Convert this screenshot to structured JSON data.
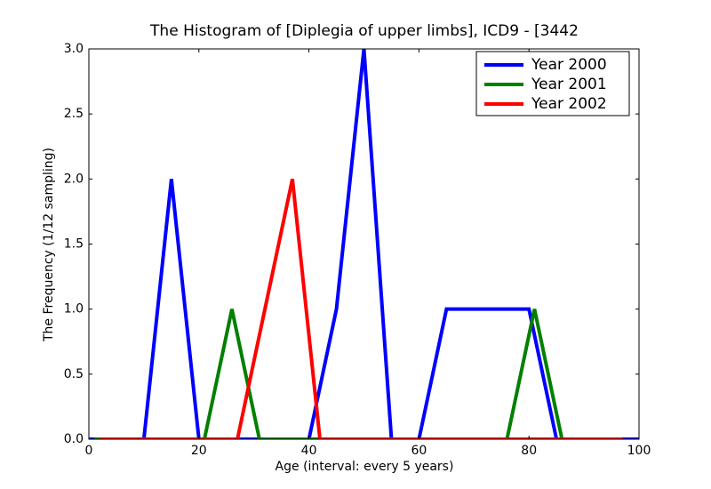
{
  "chart_data": {
    "type": "line",
    "title": "The Histogram of [Diplegia of upper limbs], ICD9 - [3442",
    "x_label": "Age (interval: every 5 years)",
    "y_label": "The Frequency (1/12 sampling)",
    "xlim": [
      0,
      100
    ],
    "xticks": [
      0,
      20,
      40,
      60,
      80,
      100
    ],
    "ylim": [
      0,
      3
    ],
    "yticks": [
      {
        "value": 0,
        "label": "0.0"
      },
      {
        "value": 0.5,
        "label": "0.5"
      },
      {
        "value": 1,
        "label": "1.0"
      },
      {
        "value": 1.5,
        "label": "1.5"
      },
      {
        "value": 2,
        "label": "2.0"
      },
      {
        "value": 2.5,
        "label": "2.5"
      },
      {
        "value": 3,
        "label": "3.0"
      }
    ],
    "legend": "upper right",
    "series": [
      {
        "name": "Year 2000",
        "color": "#0000ff",
        "x": [
          0,
          5,
          10,
          15,
          20,
          25,
          30,
          35,
          40,
          45,
          50,
          55,
          60,
          65,
          70,
          75,
          80,
          85,
          90,
          95,
          100
        ],
        "values": [
          0,
          0,
          0,
          2,
          0,
          0,
          0,
          0,
          0,
          1,
          3,
          0,
          0,
          1,
          1,
          1,
          1,
          0,
          0,
          0,
          0
        ]
      },
      {
        "name": "Year 2001",
        "color": "#008000",
        "x": [
          1,
          6,
          11,
          16,
          21,
          26,
          31,
          36,
          41,
          46,
          51,
          56,
          61,
          66,
          71,
          76,
          81,
          86,
          91,
          96
        ],
        "values": [
          0,
          0,
          0,
          0,
          0,
          1,
          0,
          0,
          0,
          0,
          0,
          0,
          0,
          0,
          0,
          0,
          1,
          0,
          0,
          0
        ]
      },
      {
        "name": "Year 2002",
        "color": "#ff0000",
        "x": [
          2,
          7,
          12,
          17,
          22,
          27,
          32,
          37,
          42,
          47,
          52,
          57,
          62,
          67,
          72,
          77,
          82,
          87,
          92,
          97
        ],
        "values": [
          0,
          0,
          0,
          0,
          0,
          0,
          1,
          2,
          0,
          0,
          0,
          0,
          0,
          0,
          0,
          0,
          0,
          0,
          0,
          0
        ]
      }
    ]
  }
}
